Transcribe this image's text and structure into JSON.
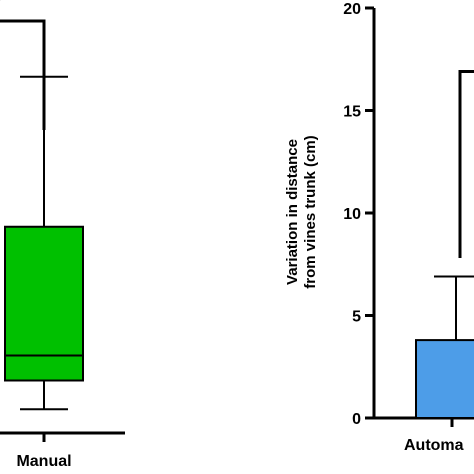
{
  "chart_data": [
    {
      "type": "box",
      "categories": [
        "Manual"
      ],
      "series": [
        {
          "color": "#00c000",
          "min": 1.9,
          "q1": 4.2,
          "median": 6.2,
          "q3": 16.5,
          "max": 28.5
        }
      ],
      "ylim": [
        0,
        34
      ],
      "significance": "*",
      "ylabel": "",
      "xlabel": ""
    },
    {
      "type": "box",
      "categories": [
        "Automa"
      ],
      "series": [
        {
          "color": "#4d9de8",
          "min": 0,
          "q1": 0,
          "median": 3.8,
          "q3": 3.8,
          "max": 6.9
        }
      ],
      "ylim": [
        0,
        20
      ],
      "yticks": [
        "0",
        "5",
        "10",
        "15",
        "20"
      ],
      "ylabel_line1": "Variation in distance",
      "ylabel_line2": "from vines trunk (cm)",
      "bracket_top": 16.9
    }
  ]
}
